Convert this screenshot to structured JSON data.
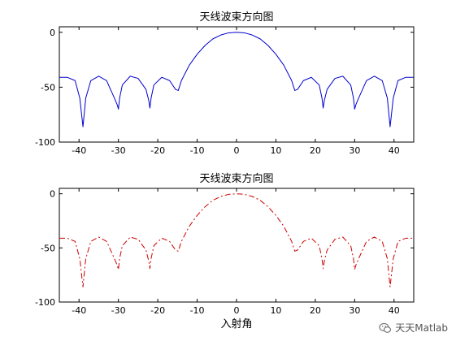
{
  "chart_data": [
    {
      "type": "line",
      "title": "天线波束方向图",
      "xlabel": "",
      "ylabel": "",
      "xlim": [
        -45,
        45
      ],
      "ylim": [
        -100,
        5
      ],
      "xticks": [
        -40,
        -30,
        -20,
        -10,
        0,
        10,
        20,
        30,
        40
      ],
      "yticks": [
        0,
        -50,
        -100
      ],
      "grid": false,
      "series": [
        {
          "color": "#0000cc",
          "style": "solid",
          "x": [
            -45,
            -43,
            -41,
            -39.8,
            -39,
            -38.3,
            -37,
            -35,
            -33,
            -31,
            -30.3,
            -30,
            -29.7,
            -29,
            -27,
            -25,
            -23,
            -22.3,
            -22,
            -21.7,
            -21,
            -19,
            -17,
            -15.5,
            -14.8,
            -14,
            -12,
            -10,
            -8,
            -6,
            -4,
            -2,
            0,
            2,
            4,
            6,
            8,
            10,
            12,
            14,
            14.8,
            15.5,
            17,
            19,
            21,
            21.7,
            22,
            22.3,
            23,
            25,
            27,
            29,
            29.7,
            30,
            30.3,
            31,
            33,
            35,
            37,
            38.3,
            39,
            39.8,
            41,
            43,
            45
          ],
          "y": [
            -41,
            -41,
            -44,
            -60,
            -86,
            -60,
            -44,
            -40,
            -44,
            -60,
            -66,
            -70,
            -60,
            -48,
            -40,
            -42,
            -52,
            -62,
            -69,
            -60,
            -48,
            -41,
            -44,
            -52,
            -53,
            -44,
            -30,
            -20,
            -12,
            -6,
            -2.5,
            -0.5,
            0,
            -0.5,
            -2.5,
            -6,
            -12,
            -20,
            -30,
            -44,
            -53,
            -52,
            -44,
            -41,
            -48,
            -60,
            -69,
            -62,
            -52,
            -42,
            -40,
            -48,
            -60,
            -70,
            -66,
            -60,
            -44,
            -40,
            -44,
            -60,
            -86,
            -60,
            -44,
            -41,
            -41
          ]
        }
      ]
    },
    {
      "type": "line",
      "title": "天线波束方向图",
      "xlabel": "入射角",
      "ylabel": "",
      "xlim": [
        -45,
        45
      ],
      "ylim": [
        -100,
        5
      ],
      "xticks": [
        -40,
        -30,
        -20,
        -10,
        0,
        10,
        20,
        30,
        40
      ],
      "yticks": [
        0,
        -50,
        -100
      ],
      "grid": false,
      "series": [
        {
          "color": "#cc0000",
          "style": "dashdot",
          "x": [
            -45,
            -43,
            -41,
            -39.8,
            -39,
            -38.3,
            -37,
            -35,
            -33,
            -31,
            -30.3,
            -30,
            -29.7,
            -29,
            -27,
            -25,
            -23,
            -22.3,
            -22,
            -21.7,
            -21,
            -19,
            -17,
            -15.5,
            -14.8,
            -14,
            -12,
            -10,
            -8,
            -6,
            -4,
            -2,
            0,
            2,
            4,
            6,
            8,
            10,
            12,
            14,
            14.8,
            15.5,
            17,
            19,
            21,
            21.7,
            22,
            22.3,
            23,
            25,
            27,
            29,
            29.7,
            30,
            30.3,
            31,
            33,
            35,
            37,
            38.3,
            39,
            39.8,
            41,
            43,
            45
          ],
          "y": [
            -41,
            -41,
            -44,
            -60,
            -86,
            -60,
            -44,
            -40,
            -44,
            -60,
            -66,
            -70,
            -60,
            -48,
            -40,
            -42,
            -52,
            -62,
            -69,
            -60,
            -48,
            -41,
            -44,
            -52,
            -53,
            -44,
            -30,
            -20,
            -12,
            -6,
            -2.5,
            -0.5,
            0,
            -0.5,
            -2.5,
            -6,
            -12,
            -20,
            -30,
            -44,
            -53,
            -52,
            -44,
            -41,
            -48,
            -60,
            -69,
            -62,
            -52,
            -42,
            -40,
            -48,
            -60,
            -70,
            -66,
            -60,
            -44,
            -40,
            -44,
            -60,
            -86,
            -60,
            -44,
            -41,
            -41
          ]
        }
      ]
    }
  ],
  "watermark": {
    "text": "天天Matlab",
    "icon": "wechat-icon"
  }
}
